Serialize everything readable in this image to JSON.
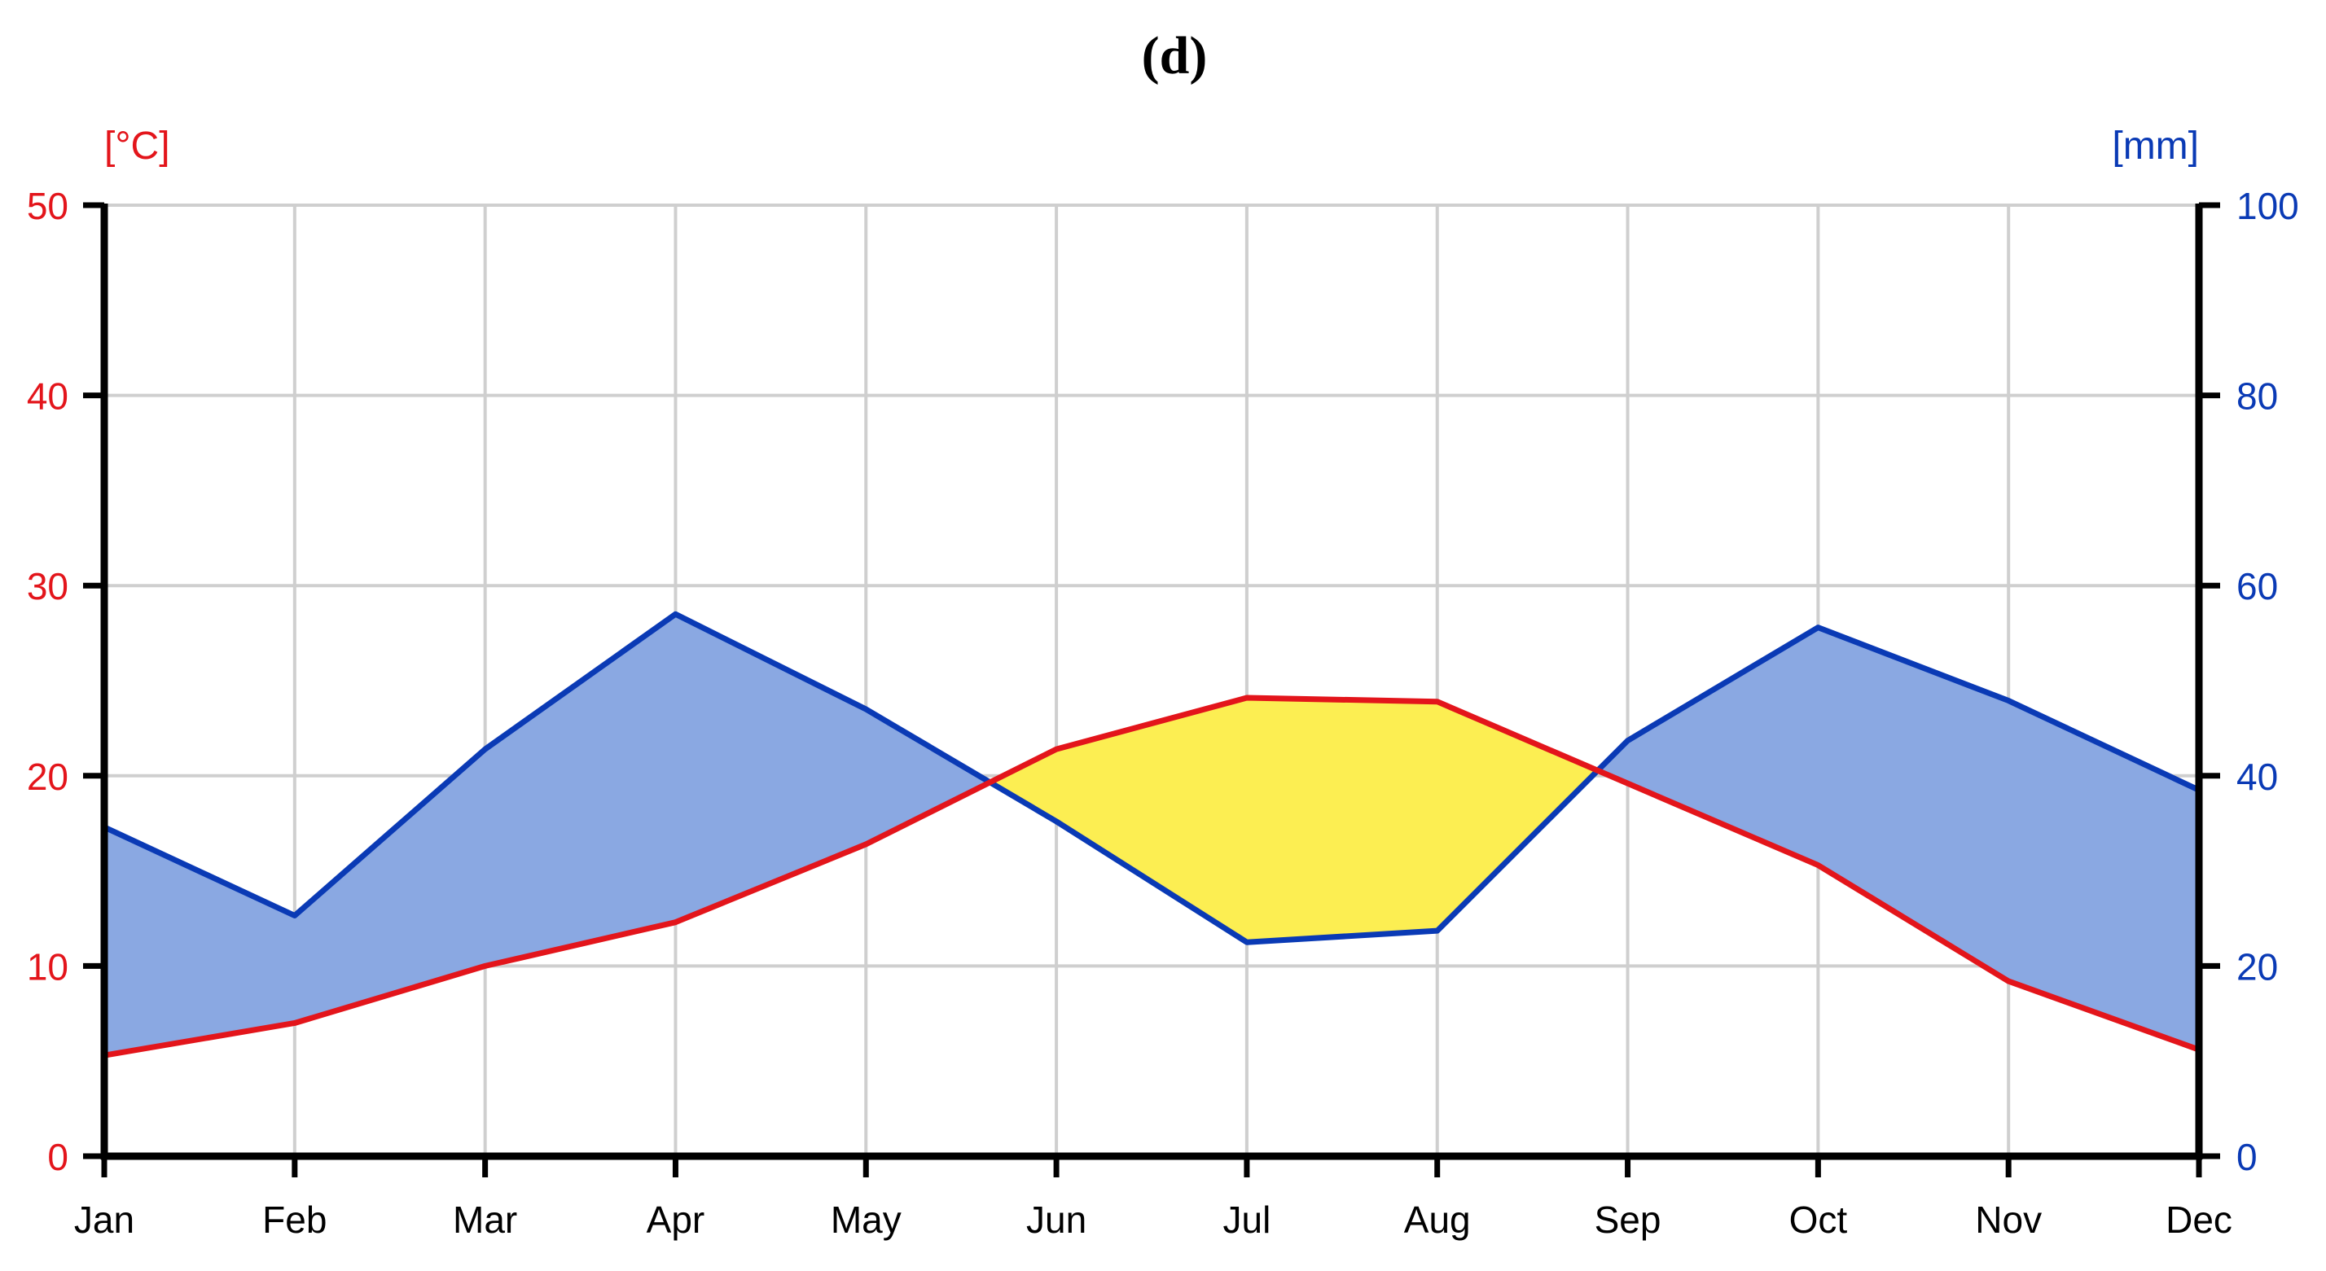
{
  "panel_label": "(d)",
  "colors": {
    "temperature": "#e3151b",
    "precipitation": "#0a3ab5",
    "humid_fill": "#8aa8e2",
    "arid_fill": "#fcee52",
    "grid": "#cfcfcf",
    "axis": "#000000"
  },
  "chart_data": {
    "type": "line",
    "title": "",
    "categories": [
      "Jan",
      "Feb",
      "Mar",
      "Apr",
      "May",
      "Jun",
      "Jul",
      "Aug",
      "Sep",
      "Oct",
      "Nov",
      "Dec"
    ],
    "y_left": {
      "label": "[°C]",
      "range": [
        0,
        50
      ],
      "ticks": [
        "0",
        "10",
        "20",
        "30",
        "40",
        "50"
      ]
    },
    "y_right": {
      "label": "[mm]",
      "range": [
        0,
        100
      ],
      "ticks": [
        "0",
        "20",
        "40",
        "60",
        "80",
        "100"
      ]
    },
    "series": [
      {
        "key": "temperature",
        "axis": "left",
        "values": [
          5.3,
          7.0,
          10.0,
          12.3,
          16.4,
          21.4,
          24.1,
          23.9,
          19.6,
          15.3,
          9.2,
          5.6
        ]
      },
      {
        "key": "precipitation",
        "axis": "right",
        "values": [
          34.6,
          25.3,
          42.8,
          57.0,
          47.0,
          35.2,
          22.5,
          23.7,
          43.7,
          55.6,
          47.9,
          38.5
        ]
      }
    ],
    "grid": true,
    "legend": "none"
  }
}
